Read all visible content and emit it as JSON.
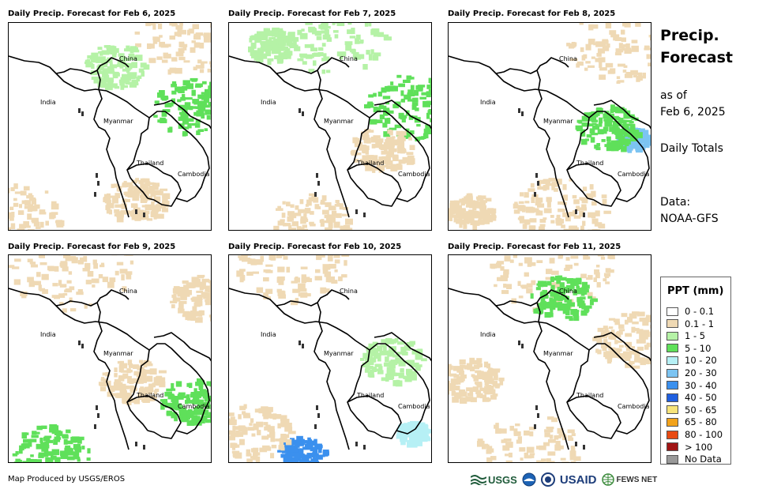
{
  "panels": [
    {
      "title": "Daily Precip. Forecast for Feb 6, 2025"
    },
    {
      "title": "Daily Precip. Forecast for Feb 7, 2025"
    },
    {
      "title": "Daily Precip. Forecast for Feb 8, 2025"
    },
    {
      "title": "Daily Precip. Forecast for Feb 9, 2025"
    },
    {
      "title": "Daily Precip. Forecast for Feb 10, 2025"
    },
    {
      "title": "Daily Precip. Forecast for Feb 11, 2025"
    }
  ],
  "places": {
    "china": "China",
    "india": "India",
    "myanmar": "Myanmar",
    "thailand": "Thailand",
    "cambodia": "Cambodia"
  },
  "side": {
    "title_line1": "Precip.",
    "title_line2": "Forecast",
    "asof_line1": "as of",
    "asof_line2": "Feb 6, 2025",
    "totals": "Daily Totals",
    "data_line1": "Data:",
    "data_line2": "NOAA-GFS"
  },
  "legend": {
    "title": "PPT (mm)",
    "items": [
      {
        "label": "0 - 0.1",
        "color": "#ffffff"
      },
      {
        "label": "0.1 - 1",
        "color": "#efd9b4"
      },
      {
        "label": "1 - 5",
        "color": "#b5f2a6"
      },
      {
        "label": "5 - 10",
        "color": "#5fe05a"
      },
      {
        "label": "10 - 20",
        "color": "#b6f0f5"
      },
      {
        "label": "20 - 30",
        "color": "#7cc4f2"
      },
      {
        "label": "30 - 40",
        "color": "#3b90ee"
      },
      {
        "label": "40 - 50",
        "color": "#1f5fe0"
      },
      {
        "label": "50 - 65",
        "color": "#f7e47a"
      },
      {
        "label": "65 - 80",
        "color": "#f2a21a"
      },
      {
        "label": "80 - 100",
        "color": "#e84a12"
      },
      {
        "label": "> 100",
        "color": "#a01414"
      },
      {
        "label": "No Data",
        "color": "#999999"
      }
    ]
  },
  "credit": "Map Produced by USGS/EROS",
  "logos": {
    "usgs": "USGS",
    "usaid": "USAID",
    "fewsnet": "FEWS NET"
  }
}
